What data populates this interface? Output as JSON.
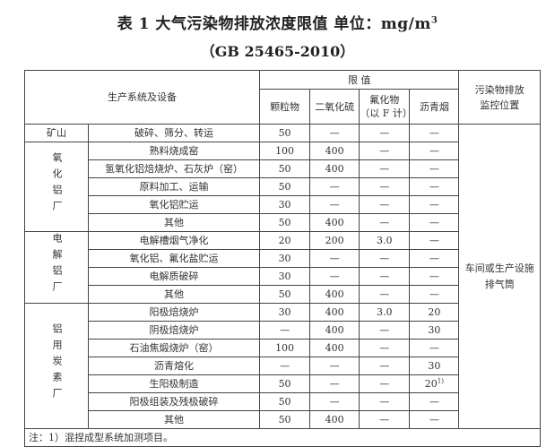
{
  "title": {
    "text": "表 1 大气污染物排放浓度限值  单位：mg/m",
    "sup": "3"
  },
  "subtitle": "（GB 25465-2010）",
  "header": {
    "system": "生产系统及设备",
    "limit": "限  值",
    "particulate": "颗粒物",
    "so2": "二氧化硫",
    "fluoride_l1": "氟化物",
    "fluoride_l2": "（以 F 计）",
    "pitch": "沥青烟",
    "location_l1": "污染物排放",
    "location_l2": "监控位置"
  },
  "location_value_l1": "车间或生产设施",
  "location_value_l2": "排气筒",
  "groups": [
    {
      "name": "矿山",
      "rows": [
        [
          "破碎、筛分、转运",
          "50",
          "—",
          "—",
          "—"
        ]
      ]
    },
    {
      "name": "氧化铝厂",
      "rows": [
        [
          "熟料烧成窑",
          "100",
          "400",
          "—",
          "—"
        ],
        [
          "氢氧化铝焙烧炉、石灰炉（窑）",
          "50",
          "400",
          "—",
          "—"
        ],
        [
          "原料加工、运输",
          "50",
          "—",
          "—",
          "—"
        ],
        [
          "氧化铝贮运",
          "30",
          "—",
          "—",
          "—"
        ],
        [
          "其他",
          "50",
          "400",
          "—",
          "—"
        ]
      ]
    },
    {
      "name": "电解铝厂",
      "rows": [
        [
          "电解槽烟气净化",
          "20",
          "200",
          "3.0",
          "—"
        ],
        [
          "氧化铝、氟化盐贮运",
          "30",
          "—",
          "—",
          "—"
        ],
        [
          "电解质破碎",
          "30",
          "—",
          "—",
          "—"
        ],
        [
          "其他",
          "50",
          "400",
          "—",
          "—"
        ]
      ]
    },
    {
      "name": "铝用炭素厂",
      "rows": [
        [
          "阳极焙烧炉",
          "30",
          "400",
          "3.0",
          "20"
        ],
        [
          "阴极焙烧炉",
          "—",
          "400",
          "—",
          "30"
        ],
        [
          "石油焦煅烧炉（窑）",
          "100",
          "400",
          "—",
          "—"
        ],
        [
          "沥青熔化",
          "—",
          "—",
          "—",
          "30"
        ],
        [
          "生阳极制造",
          "50",
          "—",
          "—",
          "20"
        ],
        [
          "阳极组装及残极破碎",
          "50",
          "—",
          "—",
          "—"
        ],
        [
          "其他",
          "50",
          "400",
          "—",
          "—"
        ]
      ]
    }
  ],
  "footnote_marker": "1)",
  "note": "注：1）混捏成型系统加测项目。"
}
